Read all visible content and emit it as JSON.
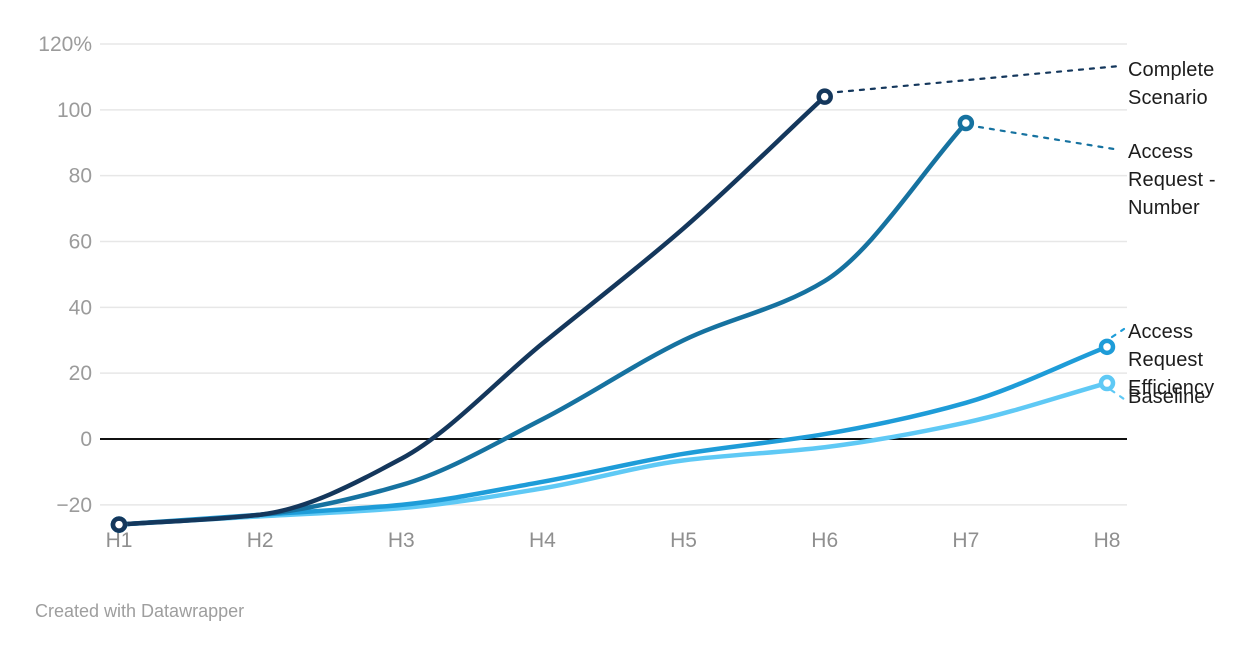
{
  "chart_data": {
    "type": "line",
    "categories": [
      "H1",
      "H2",
      "H3",
      "H4",
      "H5",
      "H6",
      "H7",
      "H8"
    ],
    "series": [
      {
        "name": "Complete Scenario",
        "color": "#14375c",
        "values": [
          -26,
          -23,
          -6,
          29,
          64,
          104
        ]
      },
      {
        "name": "Access Request - Number",
        "color": "#1672a0",
        "values": [
          -26,
          -23,
          -14,
          6,
          30,
          48,
          96
        ]
      },
      {
        "name": "Access Request Efficiency",
        "color": "#1e9cd8",
        "values": [
          -26,
          -23,
          -20,
          -13,
          -4.5,
          1.5,
          11,
          28
        ]
      },
      {
        "name": "Baseline",
        "color": "#5fc9f5",
        "values": [
          -26,
          -23.5,
          -21,
          -15,
          -6.5,
          -2.5,
          5,
          17
        ]
      }
    ],
    "yticks": [
      120,
      100,
      80,
      60,
      40,
      20,
      0,
      -20
    ],
    "ytick_labels": [
      "120%",
      "100",
      "80",
      "60",
      "40",
      "20",
      "0",
      "−20"
    ],
    "ylim": [
      -30,
      120
    ],
    "xlabel": "",
    "ylabel": "",
    "grid": true,
    "zero_line": true,
    "legend_position": "direct-labels-right",
    "axis_text_color": "#9b9b9b",
    "x_axis_text_color": "#8f8f8f",
    "grid_color": "#e7e7e7",
    "zero_line_color": "#111111"
  },
  "footer": {
    "credit": "Created with Datawrapper"
  }
}
